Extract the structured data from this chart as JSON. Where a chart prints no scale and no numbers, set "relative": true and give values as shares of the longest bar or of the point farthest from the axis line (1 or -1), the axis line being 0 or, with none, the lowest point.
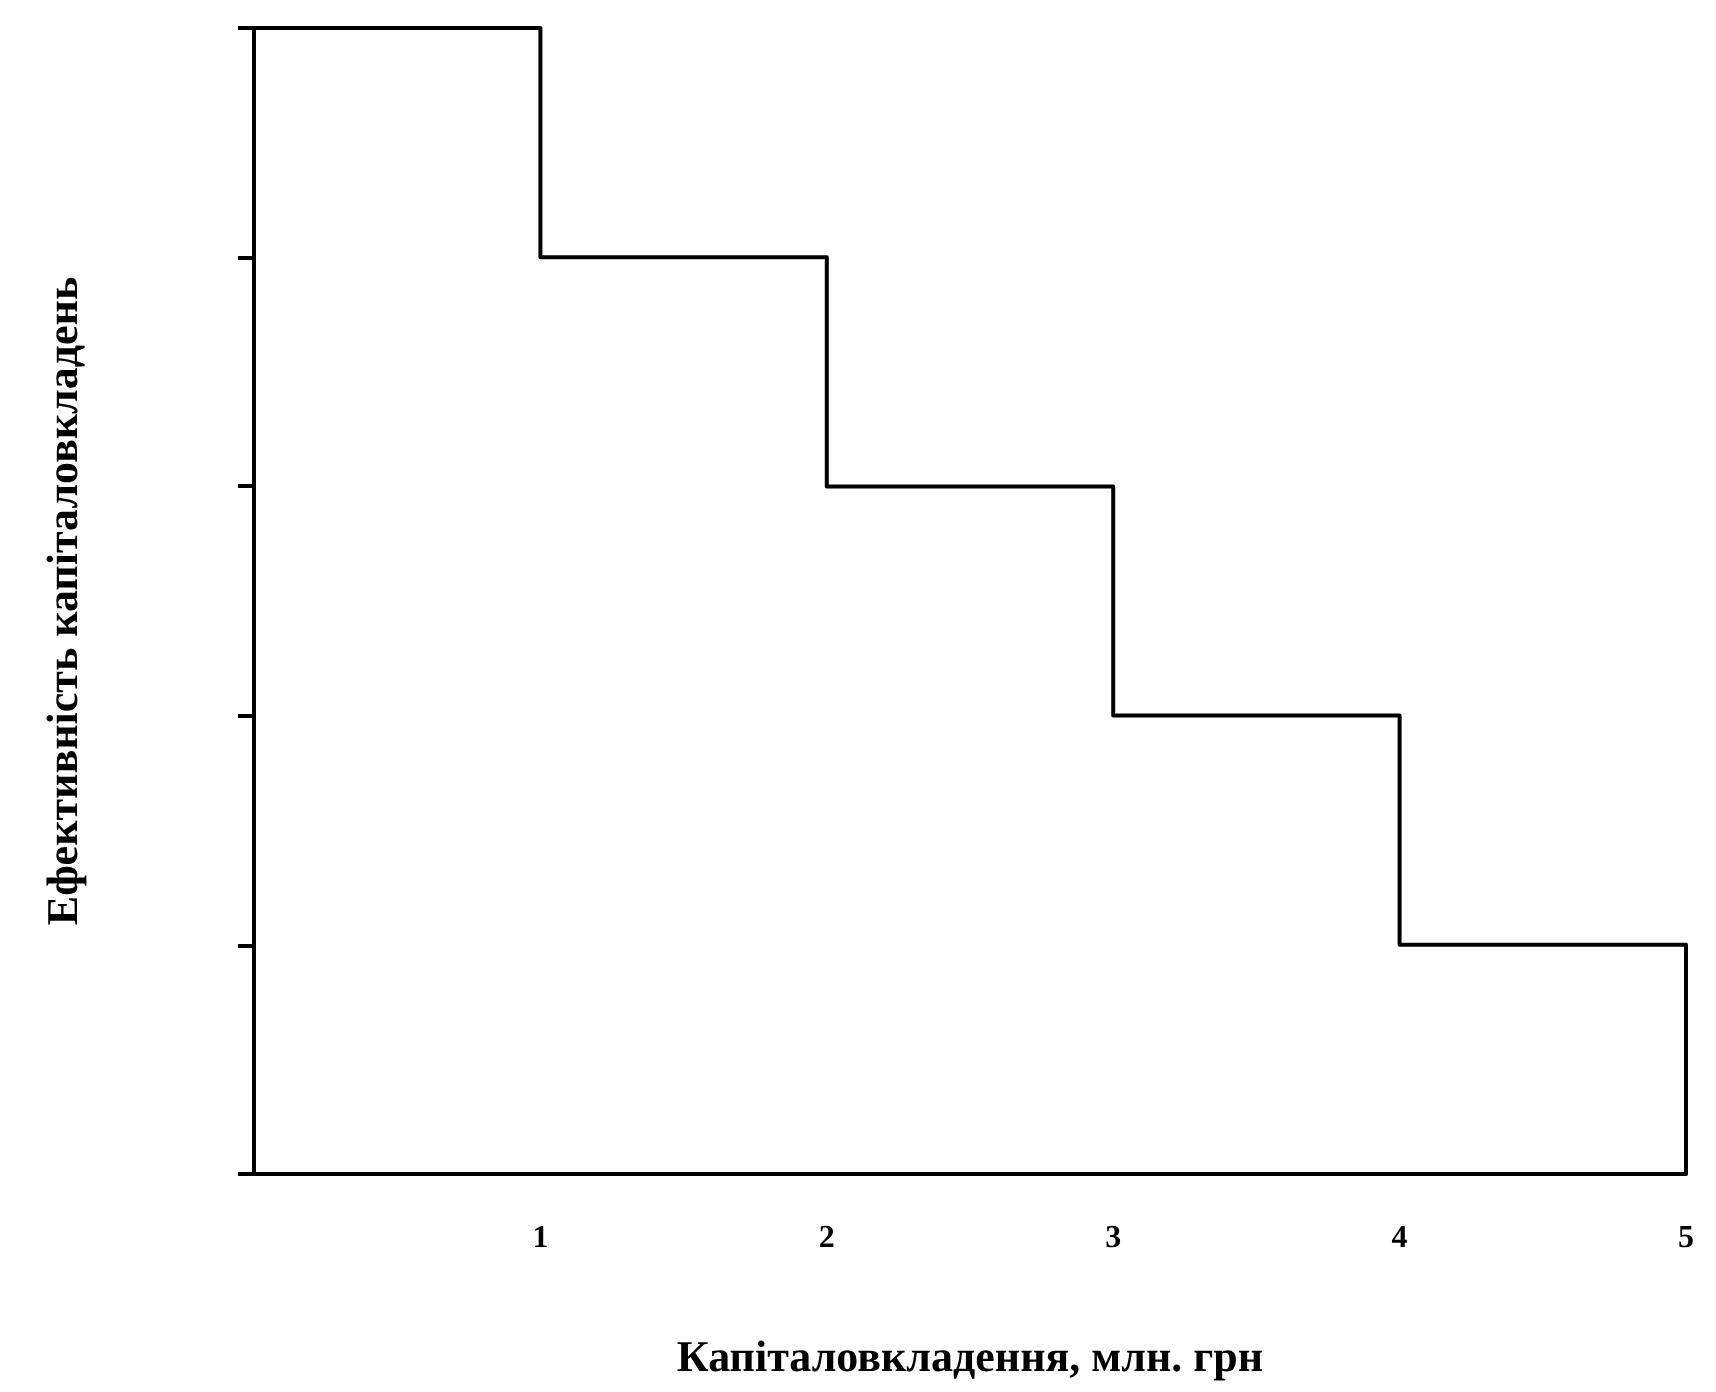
{
  "chart_data": {
    "type": "step",
    "xlabel": "Капіталовкладення, млн. грн",
    "ylabel": "Ефективність капіталовкладень",
    "x": [
      0,
      1,
      2,
      3,
      4,
      5
    ],
    "series": [
      {
        "color": "#000000",
        "values": [
          1,
          0.8,
          0.6,
          0.4,
          0.2,
          0
        ]
      }
    ],
    "relative": true,
    "xlim": [
      0,
      5
    ],
    "xticks": [
      1,
      2,
      3,
      4,
      5
    ],
    "tick_labels": "x",
    "grid": false,
    "legend": false,
    "marker": "none",
    "line_style": "solid"
  }
}
